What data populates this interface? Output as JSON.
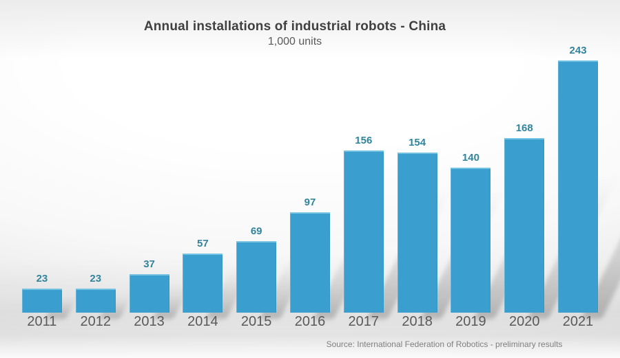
{
  "header": {
    "title": "Annual installations of industrial robots - China",
    "subtitle": "1,000 units"
  },
  "chart_data": {
    "type": "bar",
    "title": "Annual installations of industrial robots - China",
    "subtitle": "1,000 units",
    "unit": "1,000 units",
    "categories": [
      "2011",
      "2012",
      "2013",
      "2014",
      "2015",
      "2016",
      "2017",
      "2018",
      "2019",
      "2020",
      "2021"
    ],
    "values": [
      23,
      23,
      37,
      57,
      69,
      97,
      156,
      154,
      140,
      168,
      243
    ],
    "value_labels_position": "above-bars",
    "ylim": [
      0,
      260
    ],
    "grid": false,
    "legend_position": "none",
    "colors": {
      "bar": "#3A9ECF",
      "bar_top_highlight": "#74C2E1",
      "value_label": "#31849B",
      "axis_label": "#595959",
      "title": "#404040",
      "subtitle": "#595959",
      "source": "#7F7F7F"
    }
  },
  "footer": {
    "source": "Source: International Federation of Robotics - preliminary results"
  }
}
